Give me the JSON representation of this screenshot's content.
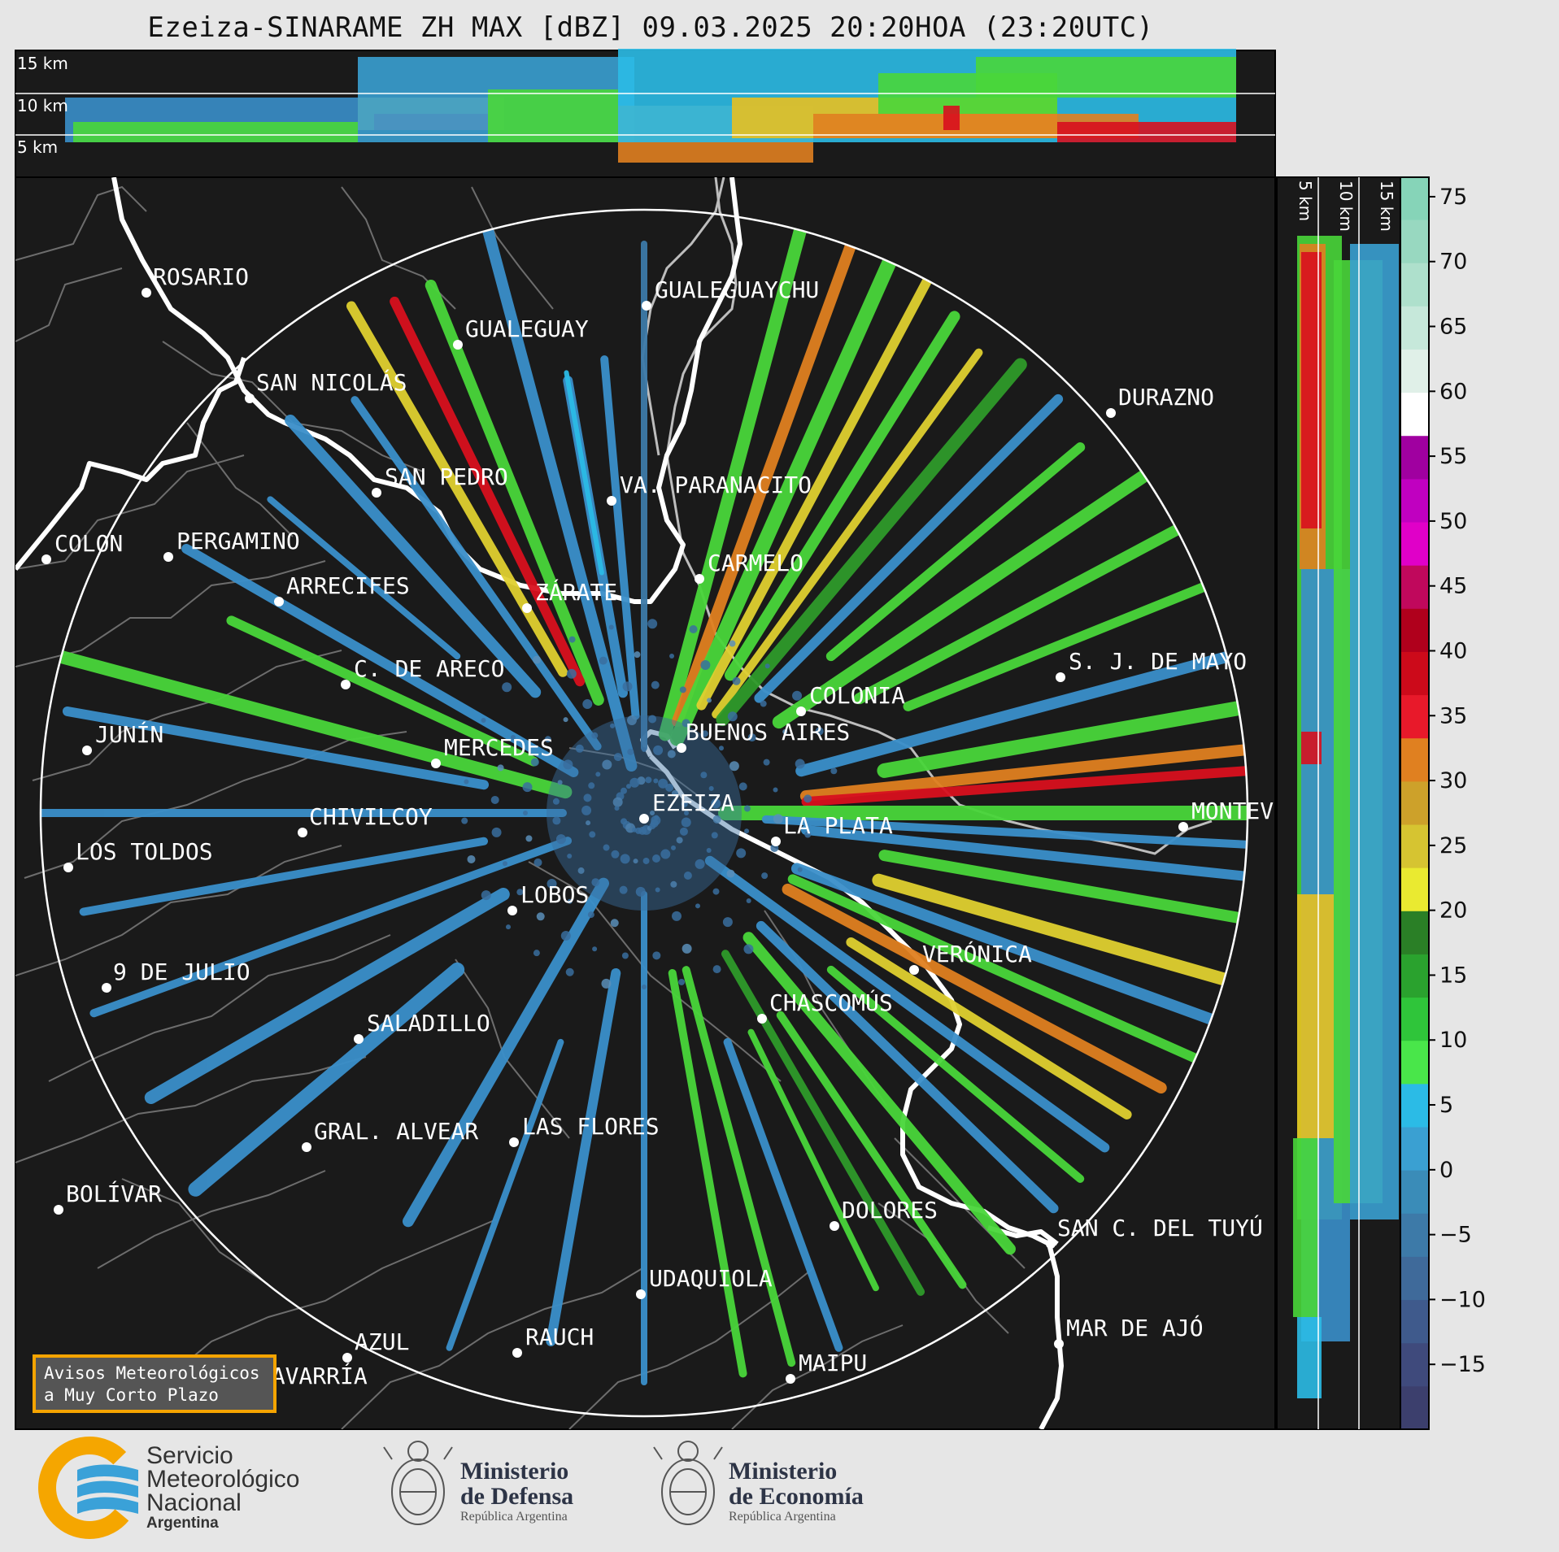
{
  "title": "Ezeiza-SINARAME ZH MAX [dBZ] 09.03.2025 20:20HOA (23:20UTC)",
  "top_panel_labels": [
    "15 km",
    "10 km",
    "5 km"
  ],
  "side_panel_labels": [
    "5 km",
    "10 km",
    "15 km"
  ],
  "colorbar": {
    "unit": "dBZ",
    "ticks": [
      "75",
      "70",
      "65",
      "60",
      "55",
      "50",
      "45",
      "40",
      "35",
      "30",
      "25",
      "20",
      "15",
      "10",
      "5",
      "0",
      "−5",
      "−10",
      "−15"
    ]
  },
  "cities": [
    {
      "name": "ROSARIO"
    },
    {
      "name": "GUALEGUAYCHU"
    },
    {
      "name": "GUALEGUAY"
    },
    {
      "name": "SAN NICOLÁS"
    },
    {
      "name": "DURAZNO"
    },
    {
      "name": "SAN PEDRO"
    },
    {
      "name": "VA. PARANACITO"
    },
    {
      "name": "COLON"
    },
    {
      "name": "PERGAMINO"
    },
    {
      "name": "CARMELO"
    },
    {
      "name": "ARRECIFES"
    },
    {
      "name": "ZÁRATE"
    },
    {
      "name": "C. DE ARECO"
    },
    {
      "name": "S. J. DE MAYO"
    },
    {
      "name": "COLONIA"
    },
    {
      "name": "JUNÍN"
    },
    {
      "name": "BUENOS AIRES"
    },
    {
      "name": "MERCEDES"
    },
    {
      "name": "EZEIZA"
    },
    {
      "name": "MONTEV"
    },
    {
      "name": "CHIVILCOY"
    },
    {
      "name": "LA PLATA"
    },
    {
      "name": "LOS TOLDOS"
    },
    {
      "name": "LOBOS"
    },
    {
      "name": "VERÓNICA"
    },
    {
      "name": "9 DE JULIO"
    },
    {
      "name": "CHASCOMÚS"
    },
    {
      "name": "SALADILLO"
    },
    {
      "name": "GRAL. ALVEAR"
    },
    {
      "name": "LAS FLORES"
    },
    {
      "name": "BOLÍVAR"
    },
    {
      "name": "DOLORES"
    },
    {
      "name": "SAN C. DEL TUYÚ"
    },
    {
      "name": "UDAQUIOLA"
    },
    {
      "name": "MAR DE AJÓ"
    },
    {
      "name": "AZUL"
    },
    {
      "name": "RAUCH"
    },
    {
      "name": "OLAVARRÍA"
    },
    {
      "name": "MAIPU"
    }
  ],
  "avisos": {
    "line1": "Avisos Meteorológicos",
    "line2": "a Muy Corto Plazo"
  },
  "logos": {
    "smn": {
      "line1": "Servicio",
      "line2": "Meteorológico",
      "line3": "Nacional",
      "line4": "Argentina"
    },
    "defensa": {
      "line1": "Ministerio",
      "line2": "de Defensa",
      "line3": "República Argentina"
    },
    "economia": {
      "line1": "Ministerio",
      "line2": "de Economía",
      "line3": "República Argentina"
    }
  }
}
